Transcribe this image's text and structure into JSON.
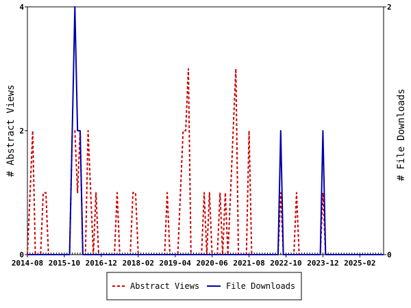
{
  "chart_data": {
    "type": "line",
    "ylabel_left": "# Abstract Views",
    "ylabel_right": "# File Downloads",
    "ylim_left": [
      0,
      4
    ],
    "ylim_right": [
      0,
      2
    ],
    "yticks_left": [
      "0",
      "2",
      "4"
    ],
    "yticks_right": [
      "0",
      "2"
    ],
    "xlim": [
      "2014-08",
      "2025-11"
    ],
    "xticks": [
      "2014-08",
      "2015-10",
      "2016-12",
      "2018-02",
      "2019-04",
      "2020-06",
      "2021-08",
      "2022-10",
      "2023-12",
      "2025-02"
    ],
    "grid": false,
    "legend_position": "bottom",
    "series": [
      {
        "name": "Abstract Views",
        "axis": "left",
        "color": "#cc0000",
        "style": "dashed",
        "points": [
          [
            "2014-08",
            0
          ],
          [
            "2014-09",
            1
          ],
          [
            "2014-10",
            2
          ],
          [
            "2014-11",
            0
          ],
          [
            "2015-01",
            0
          ],
          [
            "2015-02",
            1
          ],
          [
            "2015-03",
            1
          ],
          [
            "2015-04",
            0
          ],
          [
            "2015-12",
            0
          ],
          [
            "2016-01",
            2
          ],
          [
            "2016-02",
            2
          ],
          [
            "2016-03",
            1
          ],
          [
            "2016-04",
            2
          ],
          [
            "2016-05",
            0
          ],
          [
            "2016-06",
            0
          ],
          [
            "2016-07",
            2
          ],
          [
            "2016-08",
            1
          ],
          [
            "2016-09",
            0
          ],
          [
            "2016-10",
            1
          ],
          [
            "2016-11",
            0
          ],
          [
            "2017-05",
            0
          ],
          [
            "2017-06",
            1
          ],
          [
            "2017-07",
            0
          ],
          [
            "2017-11",
            0
          ],
          [
            "2017-12",
            1
          ],
          [
            "2018-01",
            1
          ],
          [
            "2018-02",
            0
          ],
          [
            "2018-12",
            0
          ],
          [
            "2019-01",
            1
          ],
          [
            "2019-02",
            0
          ],
          [
            "2019-05",
            0
          ],
          [
            "2019-06",
            1
          ],
          [
            "2019-07",
            2
          ],
          [
            "2019-08",
            2
          ],
          [
            "2019-09",
            3
          ],
          [
            "2019-10",
            0
          ],
          [
            "2020-02",
            0
          ],
          [
            "2020-03",
            1
          ],
          [
            "2020-04",
            0
          ],
          [
            "2020-05",
            1
          ],
          [
            "2020-06",
            0
          ],
          [
            "2020-08",
            0
          ],
          [
            "2020-09",
            1
          ],
          [
            "2020-10",
            0
          ],
          [
            "2020-11",
            1
          ],
          [
            "2020-12",
            0
          ],
          [
            "2021-01",
            1
          ],
          [
            "2021-02",
            2
          ],
          [
            "2021-03",
            3
          ],
          [
            "2021-04",
            0
          ],
          [
            "2021-07",
            0
          ],
          [
            "2021-08",
            2
          ],
          [
            "2021-09",
            0
          ],
          [
            "2022-07",
            0
          ],
          [
            "2022-08",
            1
          ],
          [
            "2022-09",
            0
          ],
          [
            "2023-01",
            0
          ],
          [
            "2023-02",
            1
          ],
          [
            "2023-03",
            0
          ],
          [
            "2023-11",
            0
          ],
          [
            "2023-12",
            1
          ],
          [
            "2024-01",
            0
          ],
          [
            "2025-11",
            0
          ]
        ]
      },
      {
        "name": "File Downloads",
        "axis": "right",
        "color": "#0000aa",
        "style": "solid",
        "points": [
          [
            "2014-08",
            0
          ],
          [
            "2015-12",
            0
          ],
          [
            "2016-01",
            1
          ],
          [
            "2016-02",
            2
          ],
          [
            "2016-03",
            1
          ],
          [
            "2016-04",
            1
          ],
          [
            "2016-05",
            0
          ],
          [
            "2022-07",
            0
          ],
          [
            "2022-08",
            1
          ],
          [
            "2022-09",
            0
          ],
          [
            "2023-11",
            0
          ],
          [
            "2023-12",
            1
          ],
          [
            "2024-01",
            0
          ],
          [
            "2025-11",
            0
          ]
        ]
      }
    ]
  }
}
